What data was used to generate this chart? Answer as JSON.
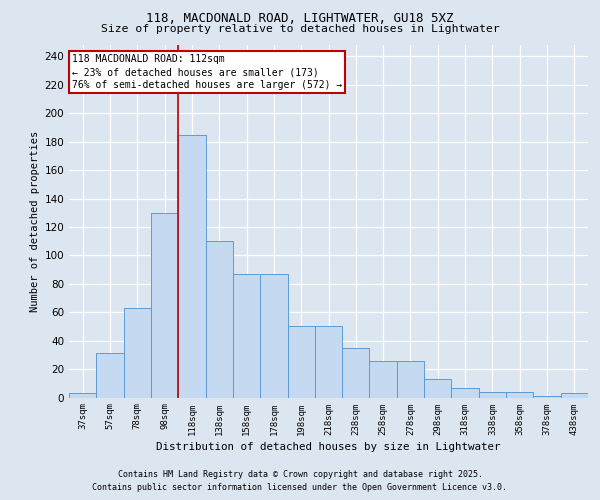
{
  "title1": "118, MACDONALD ROAD, LIGHTWATER, GU18 5XZ",
  "title2": "Size of property relative to detached houses in Lightwater",
  "xlabel": "Distribution of detached houses by size in Lightwater",
  "ylabel": "Number of detached properties",
  "bar_values": [
    3,
    31,
    63,
    130,
    185,
    110,
    87,
    87,
    50,
    50,
    35,
    26,
    26,
    13,
    7,
    4,
    4,
    1,
    3
  ],
  "x_labels": [
    "37sqm",
    "57sqm",
    "78sqm",
    "98sqm",
    "118sqm",
    "138sqm",
    "158sqm",
    "178sqm",
    "198sqm",
    "218sqm",
    "238sqm",
    "258sqm",
    "278sqm",
    "298sqm",
    "318sqm",
    "338sqm",
    "358sqm",
    "378sqm",
    "438sqm"
  ],
  "bar_color": "#c5d9f0",
  "bar_edge_color": "#5b9bd5",
  "background_color": "#dce6f1",
  "plot_bg_color": "#dce6f1",
  "grid_color": "#ffffff",
  "vline_x": 3.5,
  "vline_color": "#c00000",
  "annotation_text": "118 MACDONALD ROAD: 112sqm\n← 23% of detached houses are smaller (173)\n76% of semi-detached houses are larger (572) →",
  "annotation_box_color": "#c00000",
  "ylim": [
    0,
    248
  ],
  "yticks": [
    0,
    20,
    40,
    60,
    80,
    100,
    120,
    140,
    160,
    180,
    200,
    220,
    240
  ],
  "footnote1": "Contains HM Land Registry data © Crown copyright and database right 2025.",
  "footnote2": "Contains public sector information licensed under the Open Government Licence v3.0."
}
